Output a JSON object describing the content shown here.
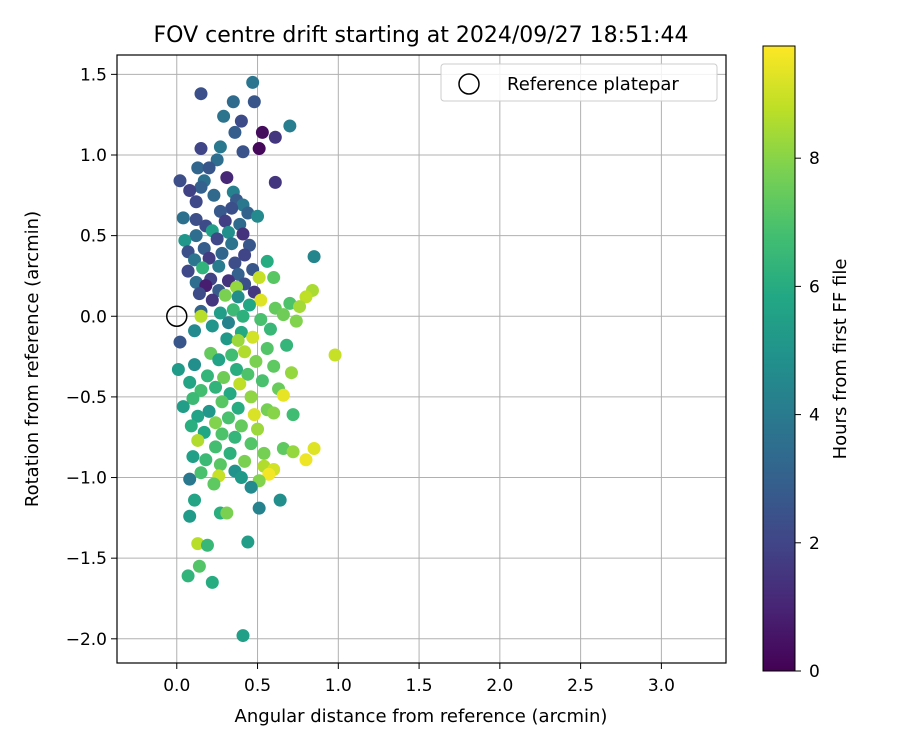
{
  "chart_data": {
    "type": "scatter",
    "title": "FOV centre drift starting at 2024/09/27 18:51:44",
    "xlabel": "Angular distance from reference (arcmin)",
    "ylabel": "Rotation from reference (arcmin)",
    "xlim": [
      -0.37,
      3.4
    ],
    "ylim": [
      -2.15,
      1.62
    ],
    "xticks": [
      "0.0",
      "0.5",
      "1.0",
      "1.5",
      "2.0",
      "2.5",
      "3.0"
    ],
    "yticks": [
      "−2.0",
      "−1.5",
      "−1.0",
      "−0.5",
      "0.0",
      "0.5",
      "1.0",
      "1.5"
    ],
    "grid": true,
    "legend": {
      "placement": "top-right",
      "entries": [
        "Reference platepar"
      ]
    },
    "reference_point": {
      "x": 0.0,
      "y": 0.0
    },
    "colorbar": {
      "label": "Hours from first FF file",
      "colormap": "viridis",
      "range": [
        0,
        9.75
      ],
      "ticks": [
        "0",
        "2",
        "4",
        "6",
        "8"
      ]
    },
    "points": [
      {
        "x": 0.47,
        "y": 1.45,
        "c": 3.8
      },
      {
        "x": 0.15,
        "y": 1.38,
        "c": 2.4
      },
      {
        "x": 0.35,
        "y": 1.33,
        "c": 3.4
      },
      {
        "x": 0.48,
        "y": 1.33,
        "c": 2.6
      },
      {
        "x": 0.29,
        "y": 1.24,
        "c": 3.7
      },
      {
        "x": 0.4,
        "y": 1.21,
        "c": 2.2
      },
      {
        "x": 0.7,
        "y": 1.18,
        "c": 4.1
      },
      {
        "x": 0.53,
        "y": 1.14,
        "c": 0.3
      },
      {
        "x": 0.36,
        "y": 1.14,
        "c": 2.9
      },
      {
        "x": 0.61,
        "y": 1.11,
        "c": 1.5
      },
      {
        "x": 0.27,
        "y": 1.05,
        "c": 3.9
      },
      {
        "x": 0.15,
        "y": 1.04,
        "c": 2.0
      },
      {
        "x": 0.51,
        "y": 1.04,
        "c": 0.2
      },
      {
        "x": 0.41,
        "y": 1.02,
        "c": 2.5
      },
      {
        "x": 0.25,
        "y": 0.97,
        "c": 3.5
      },
      {
        "x": 0.13,
        "y": 0.92,
        "c": 3.2
      },
      {
        "x": 0.2,
        "y": 0.92,
        "c": 2.6
      },
      {
        "x": 0.31,
        "y": 0.86,
        "c": 1.1
      },
      {
        "x": 0.17,
        "y": 0.84,
        "c": 3.6
      },
      {
        "x": 0.02,
        "y": 0.84,
        "c": 2.3
      },
      {
        "x": 0.61,
        "y": 0.83,
        "c": 1.5
      },
      {
        "x": 0.15,
        "y": 0.8,
        "c": 3.0
      },
      {
        "x": 0.08,
        "y": 0.78,
        "c": 1.9
      },
      {
        "x": 0.35,
        "y": 0.77,
        "c": 4.2
      },
      {
        "x": 0.23,
        "y": 0.75,
        "c": 3.3
      },
      {
        "x": 0.37,
        "y": 0.72,
        "c": 2.8
      },
      {
        "x": 0.12,
        "y": 0.71,
        "c": 2.1
      },
      {
        "x": 0.41,
        "y": 0.69,
        "c": 3.9
      },
      {
        "x": 0.34,
        "y": 0.67,
        "c": 2.4
      },
      {
        "x": 0.27,
        "y": 0.65,
        "c": 2.7
      },
      {
        "x": 0.44,
        "y": 0.64,
        "c": 3.1
      },
      {
        "x": 0.5,
        "y": 0.62,
        "c": 4.6
      },
      {
        "x": 0.04,
        "y": 0.61,
        "c": 3.6
      },
      {
        "x": 0.12,
        "y": 0.6,
        "c": 2.3
      },
      {
        "x": 0.3,
        "y": 0.59,
        "c": 1.8
      },
      {
        "x": 0.39,
        "y": 0.57,
        "c": 3.4
      },
      {
        "x": 0.18,
        "y": 0.56,
        "c": 2.2
      },
      {
        "x": 0.22,
        "y": 0.53,
        "c": 5.5
      },
      {
        "x": 0.32,
        "y": 0.52,
        "c": 4.8
      },
      {
        "x": 0.41,
        "y": 0.51,
        "c": 1.4
      },
      {
        "x": 0.12,
        "y": 0.5,
        "c": 3.5
      },
      {
        "x": 0.25,
        "y": 0.48,
        "c": 2.1
      },
      {
        "x": 0.05,
        "y": 0.47,
        "c": 5.1
      },
      {
        "x": 0.34,
        "y": 0.45,
        "c": 3.7
      },
      {
        "x": 0.45,
        "y": 0.44,
        "c": 2.6
      },
      {
        "x": 0.17,
        "y": 0.42,
        "c": 2.9
      },
      {
        "x": 0.07,
        "y": 0.4,
        "c": 2.4
      },
      {
        "x": 0.28,
        "y": 0.39,
        "c": 3.2
      },
      {
        "x": 0.42,
        "y": 0.38,
        "c": 2.0
      },
      {
        "x": 0.85,
        "y": 0.37,
        "c": 4.4
      },
      {
        "x": 0.2,
        "y": 0.36,
        "c": 1.7
      },
      {
        "x": 0.11,
        "y": 0.35,
        "c": 3.8
      },
      {
        "x": 0.56,
        "y": 0.34,
        "c": 6.0
      },
      {
        "x": 0.36,
        "y": 0.33,
        "c": 2.3
      },
      {
        "x": 0.26,
        "y": 0.31,
        "c": 4.0
      },
      {
        "x": 0.16,
        "y": 0.3,
        "c": 6.3
      },
      {
        "x": 0.47,
        "y": 0.29,
        "c": 2.6
      },
      {
        "x": 0.07,
        "y": 0.28,
        "c": 2.1
      },
      {
        "x": 0.38,
        "y": 0.26,
        "c": 3.0
      },
      {
        "x": 0.6,
        "y": 0.24,
        "c": 7.2
      },
      {
        "x": 0.21,
        "y": 0.23,
        "c": 1.9
      },
      {
        "x": 0.51,
        "y": 0.24,
        "c": 8.9
      },
      {
        "x": 0.32,
        "y": 0.22,
        "c": 1.4
      },
      {
        "x": 0.12,
        "y": 0.21,
        "c": 3.5
      },
      {
        "x": 0.42,
        "y": 0.2,
        "c": 2.4
      },
      {
        "x": 0.18,
        "y": 0.19,
        "c": 0.8
      },
      {
        "x": 0.37,
        "y": 0.18,
        "c": 8.2
      },
      {
        "x": 0.84,
        "y": 0.16,
        "c": 8.5
      },
      {
        "x": 0.26,
        "y": 0.16,
        "c": 2.8
      },
      {
        "x": 0.48,
        "y": 0.15,
        "c": 1.6
      },
      {
        "x": 0.14,
        "y": 0.14,
        "c": 2.2
      },
      {
        "x": 0.3,
        "y": 0.13,
        "c": 7.8
      },
      {
        "x": 0.8,
        "y": 0.12,
        "c": 8.8
      },
      {
        "x": 0.38,
        "y": 0.12,
        "c": 4.7
      },
      {
        "x": 0.52,
        "y": 0.1,
        "c": 9.3
      },
      {
        "x": 0.22,
        "y": 0.1,
        "c": 1.5
      },
      {
        "x": 0.7,
        "y": 0.08,
        "c": 7.0
      },
      {
        "x": 0.45,
        "y": 0.07,
        "c": 5.8
      },
      {
        "x": 0.76,
        "y": 0.06,
        "c": 8.4
      },
      {
        "x": 0.61,
        "y": 0.05,
        "c": 7.4
      },
      {
        "x": 0.35,
        "y": 0.04,
        "c": 6.6
      },
      {
        "x": 0.15,
        "y": 0.03,
        "c": 3.1
      },
      {
        "x": 0.27,
        "y": 0.02,
        "c": 5.4
      },
      {
        "x": 0.66,
        "y": 0.01,
        "c": 7.6
      },
      {
        "x": 0.41,
        "y": 0.0,
        "c": 6.2
      },
      {
        "x": 0.15,
        "y": 0.0,
        "c": 8.7
      },
      {
        "x": 0.52,
        "y": -0.02,
        "c": 6.9
      },
      {
        "x": 0.74,
        "y": -0.03,
        "c": 7.9
      },
      {
        "x": 0.32,
        "y": -0.04,
        "c": 4.3
      },
      {
        "x": 0.22,
        "y": -0.06,
        "c": 5.0
      },
      {
        "x": 0.58,
        "y": -0.08,
        "c": 6.5
      },
      {
        "x": 0.11,
        "y": -0.09,
        "c": 4.6
      },
      {
        "x": 0.4,
        "y": -0.1,
        "c": 5.9
      },
      {
        "x": 0.02,
        "y": -0.16,
        "c": 2.6
      },
      {
        "x": 0.31,
        "y": -0.14,
        "c": 5.2
      },
      {
        "x": 0.47,
        "y": -0.13,
        "c": 9.1
      },
      {
        "x": 0.38,
        "y": -0.15,
        "c": 8.3
      },
      {
        "x": 0.68,
        "y": -0.18,
        "c": 6.4
      },
      {
        "x": 0.56,
        "y": -0.2,
        "c": 7.1
      },
      {
        "x": 0.42,
        "y": -0.22,
        "c": 8.6
      },
      {
        "x": 0.21,
        "y": -0.23,
        "c": 7.4
      },
      {
        "x": 0.34,
        "y": -0.24,
        "c": 6.7
      },
      {
        "x": 0.98,
        "y": -0.24,
        "c": 8.9
      },
      {
        "x": 0.26,
        "y": -0.27,
        "c": 5.6
      },
      {
        "x": 0.49,
        "y": -0.28,
        "c": 7.8
      },
      {
        "x": 0.11,
        "y": -0.3,
        "c": 4.8
      },
      {
        "x": 0.6,
        "y": -0.31,
        "c": 7.3
      },
      {
        "x": 0.37,
        "y": -0.33,
        "c": 6.1
      },
      {
        "x": 0.01,
        "y": -0.33,
        "c": 5.3
      },
      {
        "x": 0.71,
        "y": -0.35,
        "c": 8.2
      },
      {
        "x": 0.44,
        "y": -0.36,
        "c": 7.0
      },
      {
        "x": 0.19,
        "y": -0.37,
        "c": 6.4
      },
      {
        "x": 0.29,
        "y": -0.38,
        "c": 7.6
      },
      {
        "x": 0.53,
        "y": -0.4,
        "c": 6.9
      },
      {
        "x": 0.08,
        "y": -0.41,
        "c": 5.7
      },
      {
        "x": 0.39,
        "y": -0.42,
        "c": 8.8
      },
      {
        "x": 0.24,
        "y": -0.44,
        "c": 6.3
      },
      {
        "x": 0.63,
        "y": -0.45,
        "c": 7.5
      },
      {
        "x": 0.15,
        "y": -0.46,
        "c": 6.8
      },
      {
        "x": 0.33,
        "y": -0.48,
        "c": 5.9
      },
      {
        "x": 0.66,
        "y": -0.49,
        "c": 9.4
      },
      {
        "x": 0.46,
        "y": -0.5,
        "c": 8.1
      },
      {
        "x": 0.1,
        "y": -0.51,
        "c": 6.6
      },
      {
        "x": 0.28,
        "y": -0.53,
        "c": 7.2
      },
      {
        "x": 0.04,
        "y": -0.56,
        "c": 5.4
      },
      {
        "x": 0.38,
        "y": -0.57,
        "c": 6.0
      },
      {
        "x": 0.56,
        "y": -0.58,
        "c": 7.7
      },
      {
        "x": 0.2,
        "y": -0.59,
        "c": 5.1
      },
      {
        "x": 0.48,
        "y": -0.61,
        "c": 9.2
      },
      {
        "x": 0.72,
        "y": -0.61,
        "c": 6.7
      },
      {
        "x": 0.13,
        "y": -0.62,
        "c": 5.6
      },
      {
        "x": 0.32,
        "y": -0.63,
        "c": 6.9
      },
      {
        "x": 0.6,
        "y": -0.6,
        "c": 8.0
      },
      {
        "x": 0.24,
        "y": -0.66,
        "c": 7.9
      },
      {
        "x": 0.09,
        "y": -0.68,
        "c": 6.1
      },
      {
        "x": 0.4,
        "y": -0.68,
        "c": 7.4
      },
      {
        "x": 0.5,
        "y": -0.7,
        "c": 8.3
      },
      {
        "x": 0.17,
        "y": -0.72,
        "c": 5.8
      },
      {
        "x": 0.28,
        "y": -0.73,
        "c": 7.0
      },
      {
        "x": 0.36,
        "y": -0.75,
        "c": 6.4
      },
      {
        "x": 0.13,
        "y": -0.77,
        "c": 8.6
      },
      {
        "x": 0.46,
        "y": -0.79,
        "c": 7.1
      },
      {
        "x": 0.24,
        "y": -0.81,
        "c": 6.8
      },
      {
        "x": 0.66,
        "y": -0.82,
        "c": 7.3
      },
      {
        "x": 0.72,
        "y": -0.84,
        "c": 8.2
      },
      {
        "x": 0.33,
        "y": -0.85,
        "c": 6.2
      },
      {
        "x": 0.54,
        "y": -0.85,
        "c": 7.7
      },
      {
        "x": 0.85,
        "y": -0.82,
        "c": 9.3
      },
      {
        "x": 0.1,
        "y": -0.87,
        "c": 5.5
      },
      {
        "x": 0.18,
        "y": -0.89,
        "c": 6.6
      },
      {
        "x": 0.42,
        "y": -0.9,
        "c": 7.8
      },
      {
        "x": 0.8,
        "y": -0.89,
        "c": 9.5
      },
      {
        "x": 0.27,
        "y": -0.92,
        "c": 7.2
      },
      {
        "x": 0.54,
        "y": -0.93,
        "c": 8.6
      },
      {
        "x": 0.6,
        "y": -0.95,
        "c": 9.1
      },
      {
        "x": 0.36,
        "y": -0.96,
        "c": 4.9
      },
      {
        "x": 0.15,
        "y": -0.97,
        "c": 6.9
      },
      {
        "x": 0.57,
        "y": -0.98,
        "c": 9.6
      },
      {
        "x": 0.26,
        "y": -0.99,
        "c": 8.9
      },
      {
        "x": 0.4,
        "y": -1.0,
        "c": 5.2
      },
      {
        "x": 0.08,
        "y": -1.01,
        "c": 3.9
      },
      {
        "x": 0.51,
        "y": -1.02,
        "c": 7.9
      },
      {
        "x": 0.23,
        "y": -1.04,
        "c": 7.3
      },
      {
        "x": 0.46,
        "y": -1.06,
        "c": 4.6
      },
      {
        "x": 0.11,
        "y": -1.14,
        "c": 5.7
      },
      {
        "x": 0.64,
        "y": -1.14,
        "c": 4.8
      },
      {
        "x": 0.51,
        "y": -1.19,
        "c": 4.3
      },
      {
        "x": 0.27,
        "y": -1.22,
        "c": 6.1
      },
      {
        "x": 0.31,
        "y": -1.22,
        "c": 7.8
      },
      {
        "x": 0.08,
        "y": -1.24,
        "c": 5.3
      },
      {
        "x": 0.13,
        "y": -1.41,
        "c": 8.7
      },
      {
        "x": 0.19,
        "y": -1.42,
        "c": 6.5
      },
      {
        "x": 0.44,
        "y": -1.4,
        "c": 5.4
      },
      {
        "x": 0.14,
        "y": -1.55,
        "c": 7.1
      },
      {
        "x": 0.07,
        "y": -1.61,
        "c": 6.3
      },
      {
        "x": 0.22,
        "y": -1.65,
        "c": 6.0
      },
      {
        "x": 0.41,
        "y": -1.98,
        "c": 5.5
      }
    ]
  }
}
